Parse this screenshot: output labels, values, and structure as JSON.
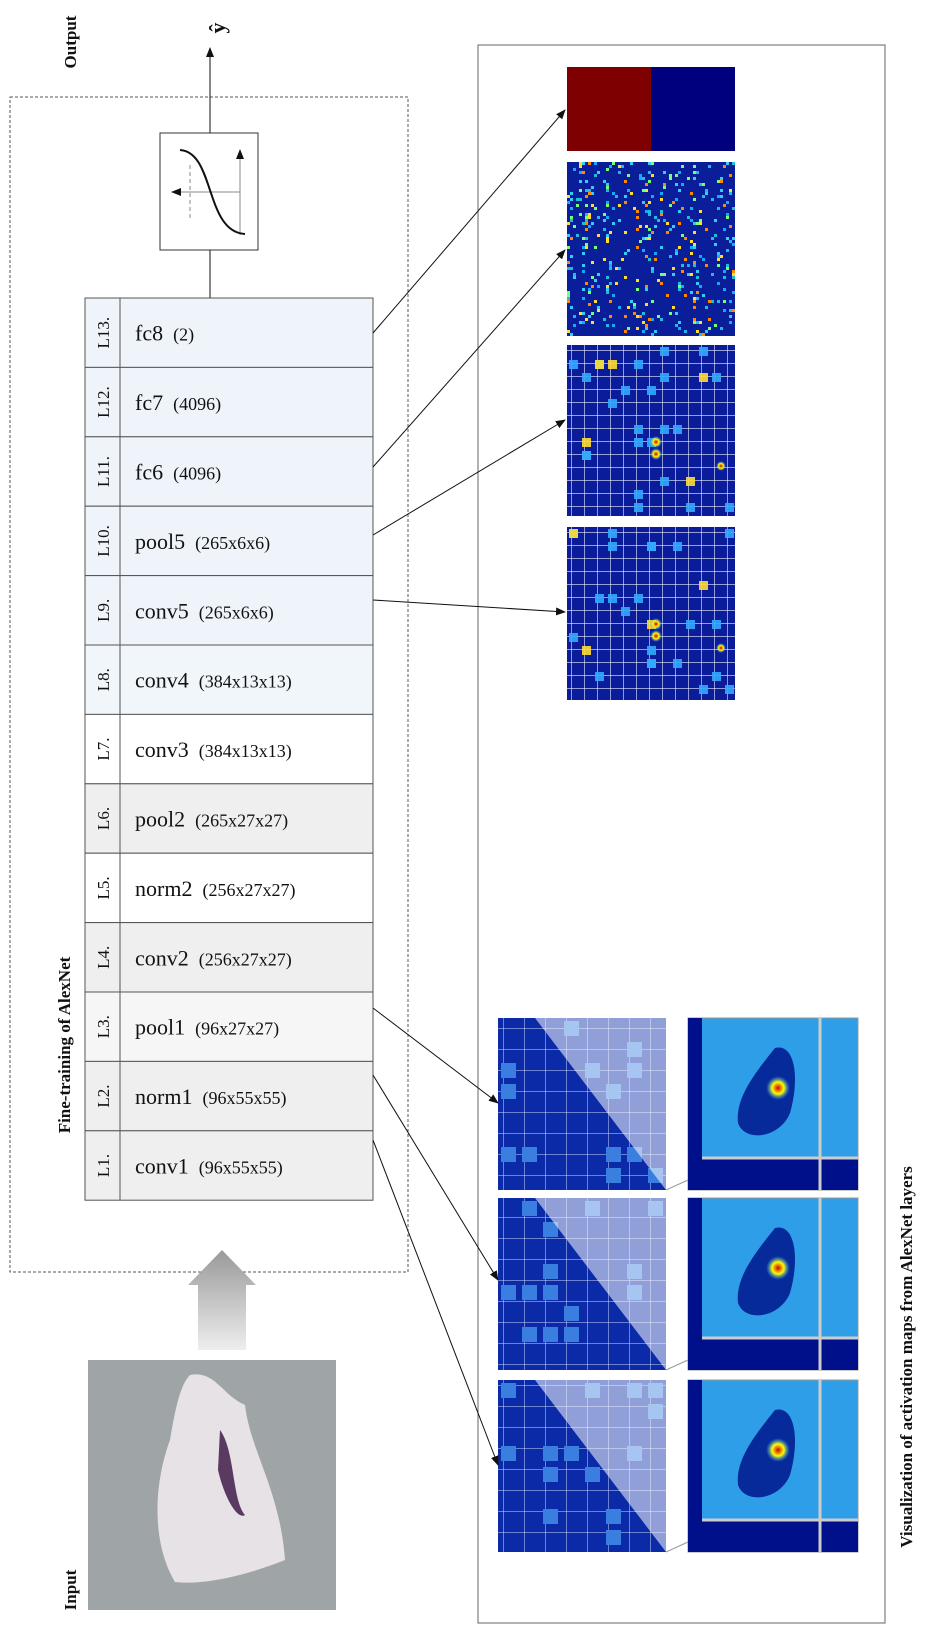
{
  "labels": {
    "output": "Output",
    "input": "Input",
    "y_hat": "ŷ",
    "box_title": "Fine-training of AlexNet",
    "caption": "Visualization of activation maps from AlexNet layers"
  },
  "layers": [
    {
      "id": "L13.",
      "name": "fc8",
      "dims": "(2)"
    },
    {
      "id": "L12.",
      "name": "fc7",
      "dims": "(4096)"
    },
    {
      "id": "L11.",
      "name": "fc6",
      "dims": "(4096)"
    },
    {
      "id": "L10.",
      "name": "pool5",
      "dims": "(265x6x6)"
    },
    {
      "id": "L9.",
      "name": "conv5",
      "dims": "(265x6x6)"
    },
    {
      "id": "L8.",
      "name": "conv4",
      "dims": "(384x13x13)"
    },
    {
      "id": "L7.",
      "name": "conv3",
      "dims": "(384x13x13)"
    },
    {
      "id": "L6.",
      "name": "pool2",
      "dims": "(265x27x27)"
    },
    {
      "id": "L5.",
      "name": "norm2",
      "dims": "(256x27x27)"
    },
    {
      "id": "L4.",
      "name": "conv2",
      "dims": "(256x27x27)"
    },
    {
      "id": "L3.",
      "name": "pool1",
      "dims": "(96x27x27)"
    },
    {
      "id": "L2.",
      "name": "norm1",
      "dims": "(96x55x55)"
    },
    {
      "id": "L1.",
      "name": "conv1",
      "dims": "(96x55x55)"
    }
  ]
}
